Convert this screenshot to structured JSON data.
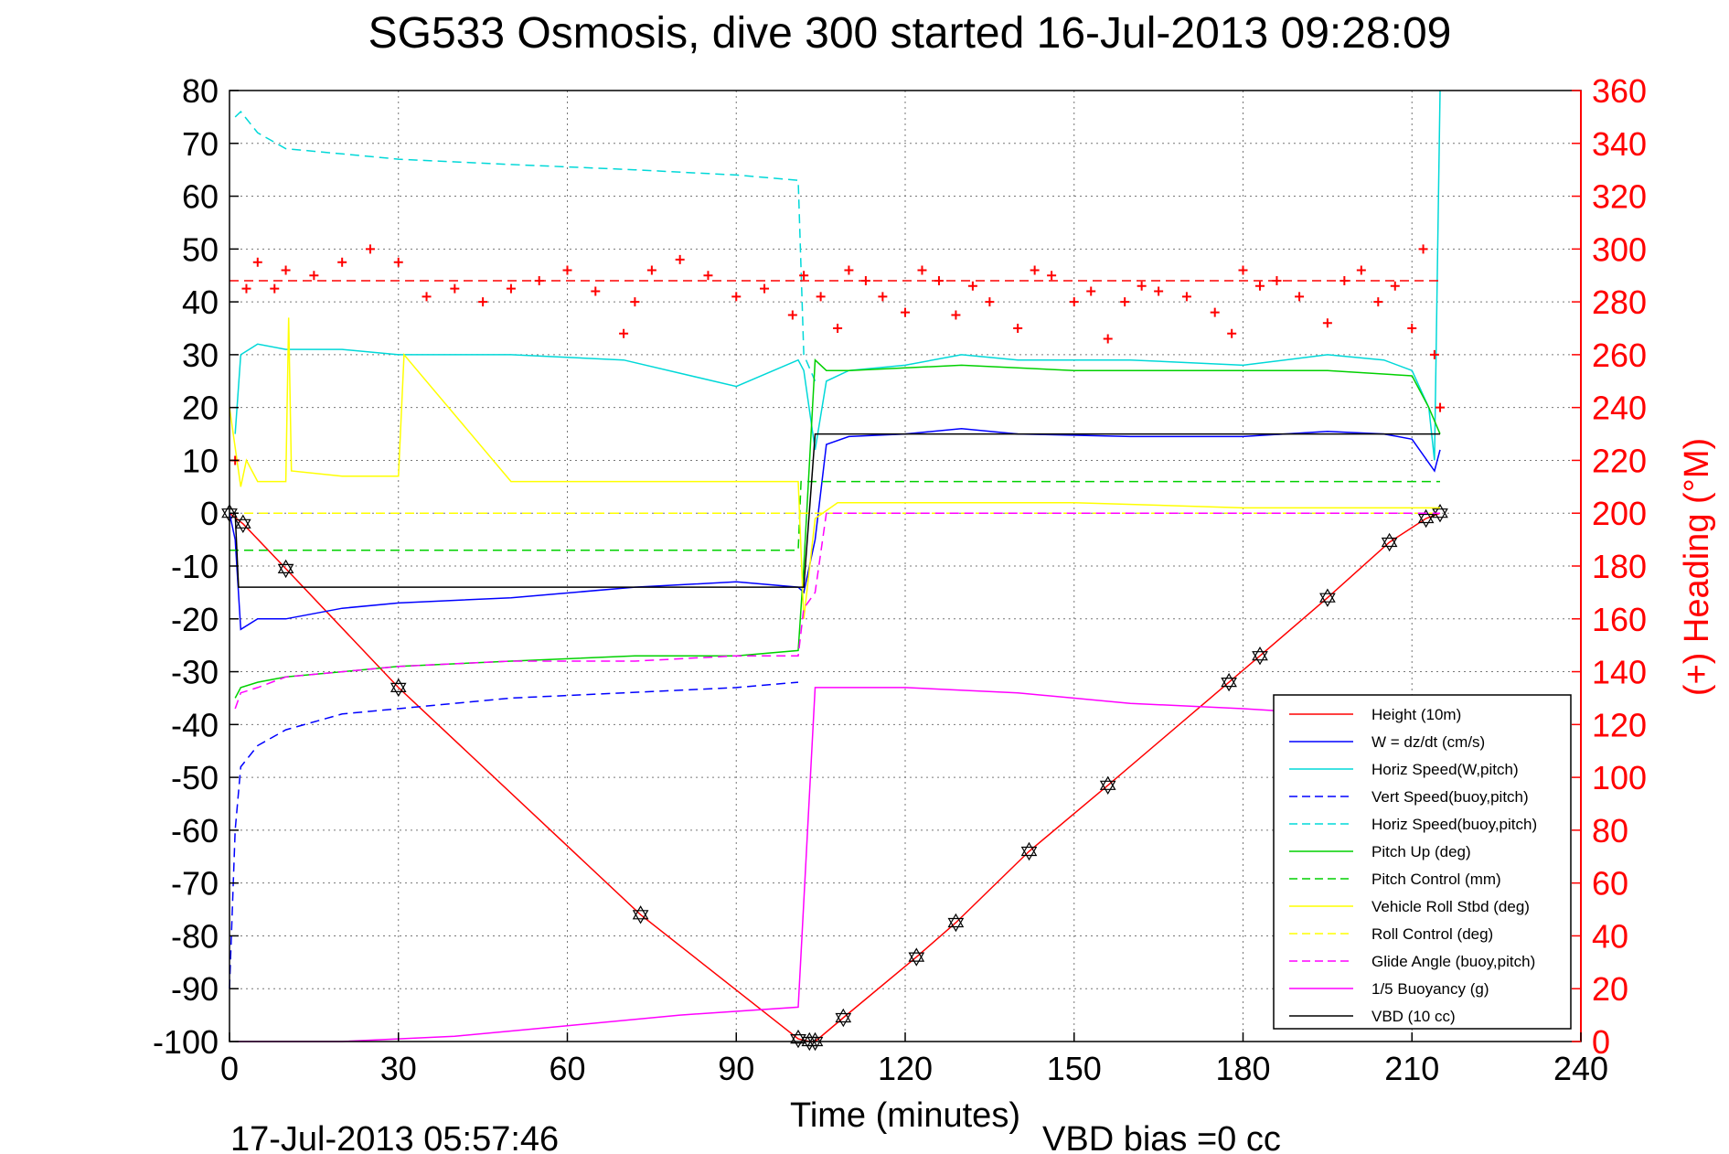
{
  "chart_data": {
    "type": "line",
    "title": "SG533 Osmosis, dive 300 started 16-Jul-2013 09:28:09",
    "xlabel": "Time (minutes)",
    "ylabel_right": "(+) Heading (°M)",
    "footer_left": "17-Jul-2013 05:57:46",
    "footer_right": "VBD bias =0 cc",
    "xlim": [
      0,
      240
    ],
    "ylim_left": [
      -100,
      80
    ],
    "ylim_right": [
      0,
      360
    ],
    "x_ticks": [
      "0",
      "30",
      "60",
      "90",
      "120",
      "150",
      "180",
      "210",
      "240"
    ],
    "y_ticks_left": [
      "80",
      "70",
      "60",
      "50",
      "40",
      "30",
      "20",
      "10",
      "0",
      "-10",
      "-20",
      "-30",
      "-40",
      "-50",
      "-60",
      "-70",
      "-80",
      "-90",
      "-100"
    ],
    "y_ticks_right": [
      "360",
      "340",
      "320",
      "300",
      "280",
      "260",
      "240",
      "220",
      "200",
      "180",
      "160",
      "140",
      "120",
      "100",
      "80",
      "60",
      "40",
      "20",
      "0"
    ],
    "grid": true,
    "legend_position": "bottom-right",
    "series": [
      {
        "name": "Height (10m)",
        "color": "#ff0000",
        "dash": "solid",
        "marker": "hexagram",
        "x": [
          0,
          2.4,
          10,
          30,
          73,
          101,
          103,
          104,
          109,
          122,
          129,
          142,
          156,
          177.5,
          183,
          195,
          206,
          212.5,
          215
        ],
        "y": [
          0,
          -2,
          -10.5,
          -33,
          -76,
          -99.5,
          -100,
          -100,
          -95.5,
          -84,
          -77.5,
          -64,
          -51.5,
          -32,
          -27,
          -16,
          -5.5,
          -1,
          0
        ]
      },
      {
        "name": "W = dz/dt (cm/s)",
        "color": "#0000ff",
        "dash": "solid",
        "x": [
          0,
          1,
          2,
          5,
          10,
          20,
          30,
          50,
          72,
          90,
          101,
          102,
          104,
          106,
          110,
          120,
          130,
          140,
          160,
          180,
          195,
          205,
          210,
          214,
          215
        ],
        "y": [
          0,
          -5,
          -22,
          -20,
          -20,
          -18,
          -17,
          -16,
          -14,
          -13,
          -14,
          -15,
          -5,
          13,
          14.5,
          15,
          16,
          15,
          14.5,
          14.5,
          15.5,
          15,
          14,
          8,
          12
        ]
      },
      {
        "name": "Horiz Speed(W,pitch)",
        "color": "#00d8d8",
        "dash": "solid",
        "x": [
          1,
          2,
          5,
          10,
          20,
          30,
          50,
          70,
          90,
          101,
          102,
          104,
          106,
          110,
          120,
          130,
          140,
          160,
          180,
          195,
          205,
          210,
          213,
          214,
          215
        ],
        "y": [
          15,
          30,
          32,
          31,
          31,
          30,
          30,
          29,
          24,
          29,
          27,
          12,
          25,
          27,
          28,
          30,
          29,
          29,
          28,
          30,
          29,
          27,
          20,
          10,
          80
        ]
      },
      {
        "name": "Vert Speed(buoy,pitch)",
        "color": "#0000ff",
        "dash": "dashed",
        "x": [
          0,
          1,
          2,
          5,
          10,
          20,
          30,
          50,
          70,
          90,
          101
        ],
        "y": [
          -90,
          -60,
          -48,
          -44,
          -41,
          -38,
          -37,
          -35,
          -34,
          -33,
          -32
        ]
      },
      {
        "name": "Horiz Speed(buoy,pitch)",
        "color": "#00d8d8",
        "dash": "dashed",
        "x": [
          1,
          2,
          5,
          10,
          20,
          30,
          50,
          72,
          90,
          101,
          102,
          104
        ],
        "y": [
          75,
          76,
          72,
          69,
          68,
          67,
          66,
          65,
          64,
          63,
          30,
          25
        ]
      },
      {
        "name": "Pitch Up (deg)",
        "color": "#00d000",
        "dash": "solid",
        "x": [
          1,
          2,
          5,
          10,
          20,
          30,
          50,
          72,
          90,
          101,
          102,
          104,
          106,
          110,
          130,
          150,
          180,
          195,
          210,
          213,
          215
        ],
        "y": [
          -35,
          -33,
          -32,
          -31,
          -30,
          -29,
          -28,
          -27,
          -27,
          -26,
          -10,
          29,
          27,
          27,
          28,
          27,
          27,
          27,
          26,
          20,
          15
        ]
      },
      {
        "name": "Pitch Control (mm)",
        "color": "#00d000",
        "dash": "dashed",
        "x": [
          0,
          101,
          101.5,
          104,
          110,
          215
        ],
        "y": [
          -7,
          -7,
          6,
          6,
          6,
          6
        ]
      },
      {
        "name": "Vehicle Roll Stbd (deg)",
        "color": "#ffff00",
        "dash": "solid",
        "x": [
          0,
          2,
          3,
          5,
          10,
          10.5,
          11,
          20,
          30,
          31,
          50,
          72,
          90,
          101,
          102,
          104,
          108,
          110,
          130,
          150,
          180,
          195,
          210,
          215
        ],
        "y": [
          20,
          5,
          10,
          6,
          6,
          37,
          8,
          7,
          7,
          30,
          6,
          6,
          6,
          6,
          -20,
          -1,
          2,
          2,
          2,
          2,
          1,
          1,
          1,
          1
        ]
      },
      {
        "name": "Roll Control (deg)",
        "color": "#ffff00",
        "dash": "dashed",
        "x": [
          0,
          101,
          102,
          104,
          215
        ],
        "y": [
          0,
          0,
          0,
          0,
          0
        ]
      },
      {
        "name": "Glide Angle (buoy,pitch)",
        "color": "#ff00ff",
        "dash": "dashed",
        "x": [
          1,
          2,
          5,
          10,
          20,
          30,
          50,
          72,
          90,
          101,
          102,
          104,
          106,
          215
        ],
        "y": [
          -37,
          -34,
          -33,
          -31,
          -30,
          -29,
          -28,
          -28,
          -27,
          -27,
          -18,
          -15,
          0,
          0
        ]
      },
      {
        "name": "1/5 Buoyancy (g)",
        "color": "#ff00ff",
        "dash": "solid",
        "x": [
          1,
          2,
          20,
          40,
          60,
          80,
          101,
          104,
          110,
          120,
          140,
          160,
          180,
          195
        ],
        "y": [
          -100,
          -100,
          -100,
          -99,
          -97,
          -95,
          -93.5,
          -33,
          -33,
          -33,
          -34,
          -36,
          -37,
          -38
        ]
      },
      {
        "name": "VBD (10 cc)",
        "color": "#000000",
        "dash": "solid",
        "x": [
          0,
          1,
          1.6,
          101,
          102,
          104,
          215
        ],
        "y": [
          0,
          0,
          -14,
          -14,
          -14,
          15,
          15
        ]
      },
      {
        "name": "Heading",
        "color": "#ff0000",
        "dash": "dashed",
        "axis": "right",
        "x": [
          0,
          215
        ],
        "y": [
          288,
          288
        ]
      },
      {
        "name": "Heading",
        "color": "#ff0000",
        "marker": "plus",
        "axis": "right",
        "x": [
          1,
          3,
          5,
          8,
          10,
          15,
          20,
          25,
          30,
          35,
          40,
          45,
          50,
          55,
          60,
          65,
          70,
          72,
          75,
          80,
          85,
          90,
          95,
          100,
          102,
          105,
          108,
          110,
          113,
          116,
          120,
          123,
          126,
          129,
          132,
          135,
          140,
          143,
          146,
          150,
          153,
          156,
          159,
          162,
          165,
          170,
          175,
          178,
          180,
          183,
          186,
          190,
          195,
          198,
          201,
          204,
          207,
          210,
          212,
          214,
          215
        ],
        "y": [
          220,
          285,
          295,
          285,
          292,
          290,
          295,
          300,
          295,
          282,
          285,
          280,
          285,
          288,
          292,
          284,
          268,
          280,
          292,
          296,
          290,
          282,
          285,
          275,
          290,
          282,
          270,
          292,
          288,
          282,
          276,
          292,
          288,
          275,
          286,
          280,
          270,
          292,
          290,
          280,
          284,
          266,
          280,
          286,
          284,
          282,
          276,
          268,
          292,
          286,
          288,
          282,
          272,
          288,
          292,
          280,
          286,
          270,
          300,
          260,
          240
        ]
      }
    ],
    "legend": [
      {
        "label": "Height (10m)",
        "color": "#ff0000",
        "dash": "solid"
      },
      {
        "label": "W = dz/dt (cm/s)",
        "color": "#0000ff",
        "dash": "solid"
      },
      {
        "label": "Horiz Speed(W,pitch)",
        "color": "#00d8d8",
        "dash": "solid"
      },
      {
        "label": "Vert Speed(buoy,pitch)",
        "color": "#0000ff",
        "dash": "dashed"
      },
      {
        "label": "Horiz Speed(buoy,pitch)",
        "color": "#00d8d8",
        "dash": "dashed"
      },
      {
        "label": "Pitch Up (deg)",
        "color": "#00d000",
        "dash": "solid"
      },
      {
        "label": "Pitch Control (mm)",
        "color": "#00d000",
        "dash": "dashed"
      },
      {
        "label": "Vehicle Roll Stbd (deg)",
        "color": "#ffff00",
        "dash": "solid"
      },
      {
        "label": "Roll Control (deg)",
        "color": "#ffff00",
        "dash": "dashed"
      },
      {
        "label": "Glide Angle (buoy,pitch)",
        "color": "#ff00ff",
        "dash": "dashed"
      },
      {
        "label": "1/5 Buoyancy (g)",
        "color": "#ff00ff",
        "dash": "solid"
      },
      {
        "label": "VBD (10 cc)",
        "color": "#000000",
        "dash": "solid"
      }
    ]
  }
}
